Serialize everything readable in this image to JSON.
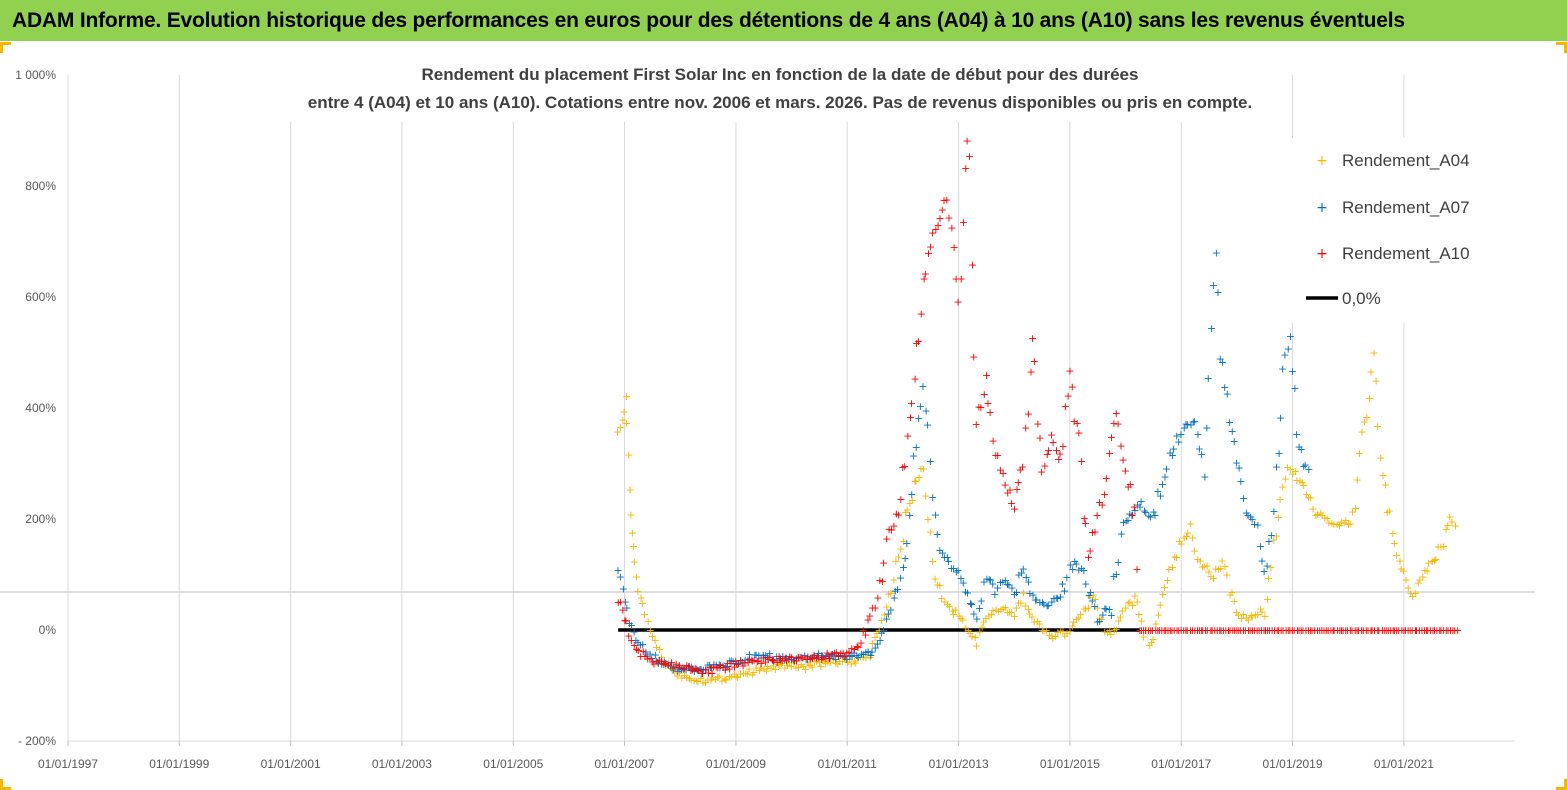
{
  "header": {
    "title": "ADAM Informe. Evolution historique des performances en euros pour des détentions de 4 ans (A04) à 10 ans (A10) sans les revenus éventuels"
  },
  "colors": {
    "banner": "#92d050",
    "A04": "#f5b800",
    "A07": "#0070c0",
    "A10": "#ff0000",
    "zero": "#000000"
  },
  "chart_data": {
    "type": "scatter",
    "title_lines": [
      "Rendement du placement First Solar Inc en fonction de la date de début pour des durées",
      "entre 4 (A04) et 10 ans (A10).  Cotations entre nov. 2006 et mars. 2026.  Pas de revenus disponibles ou pris en compte."
    ],
    "xlabel": "",
    "ylabel": "",
    "x_range": [
      "1997-01-01",
      "2022-12-31"
    ],
    "x_ticks": [
      "01/01/1997",
      "01/01/1999",
      "01/01/2001",
      "01/01/2003",
      "01/01/2005",
      "01/01/2007",
      "01/01/2009",
      "01/01/2011",
      "01/01/2013",
      "01/01/2015",
      "01/01/2017",
      "01/01/2019",
      "01/01/2021"
    ],
    "ylim": [
      -200,
      1000
    ],
    "y_ticks": [
      -200,
      0,
      200,
      400,
      600,
      800,
      1000
    ],
    "y_tick_labels": [
      "- 200%",
      "0%",
      "200%",
      "400%",
      "600%",
      "800%",
      "1 000%"
    ],
    "legend_position": "top-right",
    "grid": "vertical",
    "series": [
      {
        "name": "Rendement_A04",
        "marker": "+",
        "points": [
          [
            "2006-11-20",
            350
          ],
          [
            "2006-12-20",
            380
          ],
          [
            "2007-01-10",
            420
          ],
          [
            "2007-01-25",
            300
          ],
          [
            "2007-02-10",
            210
          ],
          [
            "2007-02-28",
            150
          ],
          [
            "2007-03-20",
            100
          ],
          [
            "2007-04-15",
            60
          ],
          [
            "2007-05-15",
            30
          ],
          [
            "2007-06-15",
            0
          ],
          [
            "2007-08-01",
            -30
          ],
          [
            "2007-10-01",
            -60
          ],
          [
            "2008-01-01",
            -80
          ],
          [
            "2008-03-01",
            -85
          ],
          [
            "2008-06-01",
            -90
          ],
          [
            "2008-09-01",
            -88
          ],
          [
            "2009-01-01",
            -80
          ],
          [
            "2009-04-01",
            -75
          ],
          [
            "2009-07-01",
            -70
          ],
          [
            "2009-10-01",
            -65
          ],
          [
            "2010-01-01",
            -62
          ],
          [
            "2010-04-01",
            -65
          ],
          [
            "2010-07-01",
            -60
          ],
          [
            "2010-10-01",
            -58
          ],
          [
            "2011-01-01",
            -55
          ],
          [
            "2011-03-01",
            -60
          ],
          [
            "2011-06-01",
            -40
          ],
          [
            "2011-08-01",
            0
          ],
          [
            "2011-10-01",
            60
          ],
          [
            "2011-12-01",
            130
          ],
          [
            "2012-02-01",
            220
          ],
          [
            "2012-04-01",
            270
          ],
          [
            "2012-05-15",
            300
          ],
          [
            "2012-06-15",
            200
          ],
          [
            "2012-08-01",
            100
          ],
          [
            "2012-09-15",
            60
          ],
          [
            "2012-11-01",
            40
          ],
          [
            "2013-01-01",
            30
          ],
          [
            "2013-03-01",
            0
          ],
          [
            "2013-05-01",
            -20
          ],
          [
            "2013-07-01",
            20
          ],
          [
            "2013-10-01",
            40
          ],
          [
            "2014-01-01",
            30
          ],
          [
            "2014-03-01",
            60
          ],
          [
            "2014-05-01",
            20
          ],
          [
            "2014-07-01",
            0
          ],
          [
            "2014-09-01",
            -10
          ],
          [
            "2014-12-01",
            -5
          ],
          [
            "2015-03-01",
            20
          ],
          [
            "2015-06-01",
            60
          ],
          [
            "2015-09-01",
            -10
          ],
          [
            "2015-12-01",
            20
          ],
          [
            "2016-03-01",
            60
          ],
          [
            "2016-06-01",
            -30
          ],
          [
            "2016-08-01",
            20
          ],
          [
            "2016-10-01",
            90
          ],
          [
            "2017-01-01",
            160
          ],
          [
            "2017-03-01",
            180
          ],
          [
            "2017-05-01",
            120
          ],
          [
            "2017-08-01",
            100
          ],
          [
            "2017-10-01",
            120
          ],
          [
            "2017-12-01",
            60
          ],
          [
            "2018-01-15",
            30
          ],
          [
            "2018-04-01",
            20
          ],
          [
            "2018-07-01",
            40
          ],
          [
            "2018-09-01",
            150
          ],
          [
            "2018-10-15",
            230
          ],
          [
            "2018-12-01",
            300
          ],
          [
            "2019-02-01",
            270
          ],
          [
            "2019-04-01",
            250
          ],
          [
            "2019-06-01",
            210
          ],
          [
            "2019-09-01",
            200
          ],
          [
            "2019-12-01",
            190
          ],
          [
            "2020-02-01",
            200
          ],
          [
            "2020-04-01",
            350
          ],
          [
            "2020-05-15",
            420
          ],
          [
            "2020-06-15",
            500
          ],
          [
            "2020-07-15",
            360
          ],
          [
            "2020-09-01",
            250
          ],
          [
            "2020-11-01",
            150
          ],
          [
            "2021-01-01",
            100
          ],
          [
            "2021-03-01",
            60
          ],
          [
            "2021-05-01",
            100
          ],
          [
            "2021-07-01",
            120
          ],
          [
            "2021-09-01",
            150
          ],
          [
            "2021-11-01",
            200
          ],
          [
            "2021-12-20",
            180
          ]
        ]
      },
      {
        "name": "Rendement_A07",
        "marker": "+",
        "points": [
          [
            "2006-11-20",
            110
          ],
          [
            "2006-12-20",
            80
          ],
          [
            "2007-01-15",
            40
          ],
          [
            "2007-03-01",
            -10
          ],
          [
            "2007-06-01",
            -40
          ],
          [
            "2007-09-01",
            -60
          ],
          [
            "2008-01-01",
            -70
          ],
          [
            "2008-06-01",
            -70
          ],
          [
            "2009-01-01",
            -55
          ],
          [
            "2009-06-01",
            -45
          ],
          [
            "2010-01-01",
            -50
          ],
          [
            "2010-06-01",
            -45
          ],
          [
            "2011-01-01",
            -50
          ],
          [
            "2011-06-01",
            -40
          ],
          [
            "2011-09-01",
            0
          ],
          [
            "2011-11-01",
            60
          ],
          [
            "2012-01-01",
            100
          ],
          [
            "2012-02-15",
            200
          ],
          [
            "2012-03-15",
            300
          ],
          [
            "2012-04-15",
            380
          ],
          [
            "2012-05-15",
            430
          ],
          [
            "2012-06-15",
            380
          ],
          [
            "2012-07-15",
            250
          ],
          [
            "2012-09-01",
            150
          ],
          [
            "2012-11-01",
            120
          ],
          [
            "2013-01-01",
            100
          ],
          [
            "2013-03-01",
            60
          ],
          [
            "2013-05-01",
            20
          ],
          [
            "2013-07-01",
            100
          ],
          [
            "2013-09-01",
            70
          ],
          [
            "2013-11-01",
            90
          ],
          [
            "2014-01-01",
            60
          ],
          [
            "2014-03-01",
            120
          ],
          [
            "2014-05-01",
            60
          ],
          [
            "2014-08-01",
            40
          ],
          [
            "2014-11-01",
            60
          ],
          [
            "2015-02-01",
            130
          ],
          [
            "2015-04-01",
            100
          ],
          [
            "2015-07-01",
            20
          ],
          [
            "2015-10-01",
            50
          ],
          [
            "2016-01-01",
            200
          ],
          [
            "2016-04-01",
            230
          ],
          [
            "2016-07-01",
            200
          ],
          [
            "2016-10-01",
            300
          ],
          [
            "2017-01-01",
            360
          ],
          [
            "2017-04-01",
            380
          ],
          [
            "2017-06-01",
            300
          ],
          [
            "2017-07-15",
            550
          ],
          [
            "2017-08-15",
            710
          ],
          [
            "2017-09-15",
            500
          ],
          [
            "2017-11-01",
            420
          ],
          [
            "2018-01-01",
            300
          ],
          [
            "2018-03-01",
            210
          ],
          [
            "2018-05-01",
            200
          ],
          [
            "2018-07-01",
            100
          ],
          [
            "2018-09-01",
            200
          ],
          [
            "2018-11-01",
            480
          ],
          [
            "2018-12-15",
            540
          ],
          [
            "2019-02-01",
            360
          ],
          [
            "2019-03-15",
            300
          ],
          [
            "2019-05-01",
            280
          ]
        ]
      },
      {
        "name": "Rendement_A10",
        "marker": "+",
        "points": [
          [
            "2006-11-20",
            50
          ],
          [
            "2006-12-20",
            40
          ],
          [
            "2007-01-15",
            10
          ],
          [
            "2007-03-01",
            -30
          ],
          [
            "2007-06-01",
            -50
          ],
          [
            "2007-09-01",
            -60
          ],
          [
            "2008-01-01",
            -65
          ],
          [
            "2008-06-01",
            -75
          ],
          [
            "2009-01-01",
            -60
          ],
          [
            "2009-06-01",
            -55
          ],
          [
            "2010-01-01",
            -50
          ],
          [
            "2010-06-01",
            -48
          ],
          [
            "2011-01-01",
            -40
          ],
          [
            "2011-04-01",
            -20
          ],
          [
            "2011-06-01",
            20
          ],
          [
            "2011-08-01",
            80
          ],
          [
            "2011-10-01",
            180
          ],
          [
            "2011-12-01",
            210
          ],
          [
            "2012-02-01",
            350
          ],
          [
            "2012-04-01",
            500
          ],
          [
            "2012-06-01",
            650
          ],
          [
            "2012-08-01",
            720
          ],
          [
            "2012-10-01",
            780
          ],
          [
            "2012-11-15",
            740
          ],
          [
            "2013-01-01",
            580
          ],
          [
            "2013-02-15",
            840
          ],
          [
            "2013-03-15",
            900
          ],
          [
            "2013-05-01",
            380
          ],
          [
            "2013-07-01",
            450
          ],
          [
            "2013-09-01",
            320
          ],
          [
            "2013-11-01",
            260
          ],
          [
            "2014-01-01",
            230
          ],
          [
            "2014-03-01",
            300
          ],
          [
            "2014-05-01",
            510
          ],
          [
            "2014-07-01",
            280
          ],
          [
            "2014-09-01",
            350
          ],
          [
            "2014-11-01",
            300
          ],
          [
            "2015-01-01",
            460
          ],
          [
            "2015-03-01",
            330
          ],
          [
            "2015-05-01",
            130
          ],
          [
            "2015-08-01",
            240
          ],
          [
            "2015-11-01",
            380
          ],
          [
            "2016-01-01",
            300
          ],
          [
            "2016-03-01",
            200
          ],
          [
            "2016-04-01",
            0
          ],
          [
            "2016-06-01",
            0
          ],
          [
            "2017-01-01",
            0
          ],
          [
            "2018-01-01",
            0
          ],
          [
            "2019-01-01",
            0
          ],
          [
            "2020-01-01",
            0
          ],
          [
            "2021-01-01",
            0
          ],
          [
            "2021-12-31",
            0
          ]
        ]
      },
      {
        "name": "0,0%",
        "marker": "line",
        "points": [
          [
            "2006-11-20",
            0
          ],
          [
            "2016-04-01",
            0
          ]
        ]
      }
    ]
  }
}
